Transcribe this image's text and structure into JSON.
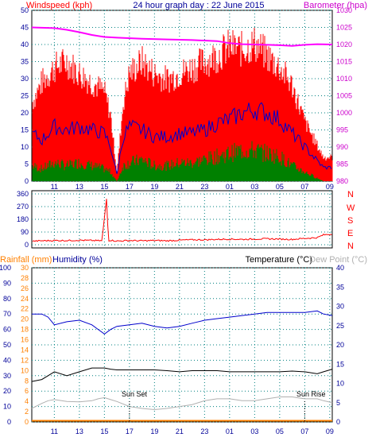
{
  "title": "24 hour graph day : 22 June 2015",
  "colors": {
    "windspeed": "#ff0000",
    "windgust": "#ff0000",
    "windavg": "#0000cc",
    "windlow": "#008000",
    "barometer": "#ff00ff",
    "direction": "#ff0000",
    "rain": "#ff8000",
    "humidity": "#0000cc",
    "temperature": "#000000",
    "dewpoint": "#b0b0b0",
    "axis_blue": "#000099",
    "barometer_axis": "#cc00cc",
    "rain_axis": "#ff8000",
    "direction_axis": "#ff0000",
    "grid": "#008080"
  },
  "x_tick_labels": [
    "11",
    "13",
    "15",
    "17",
    "19",
    "21",
    "23",
    "01",
    "03",
    "05",
    "07",
    "09"
  ],
  "chart_data": [
    {
      "type": "line",
      "name": "wind-barometer",
      "left_axis_label": "Windspeed (kph)",
      "right_axis_label": "Barometer (hpa)",
      "left_ticks": [
        "0",
        "5",
        "10",
        "15",
        "20",
        "25",
        "30",
        "35",
        "40",
        "45",
        "50"
      ],
      "right_ticks": [
        "980",
        "985",
        "990",
        "995",
        "1000",
        "1005",
        "1010",
        "1015",
        "1020",
        "1025",
        "1030"
      ],
      "ylim": [
        0,
        50
      ],
      "y2lim": [
        980,
        1030
      ],
      "x_hours": [
        9.2,
        10,
        11,
        12,
        13,
        14,
        15,
        15.5,
        16,
        16.5,
        17,
        18,
        19,
        20,
        21,
        22,
        23,
        0,
        1,
        2,
        3,
        4,
        5,
        6,
        7,
        8,
        8.5,
        9.2
      ],
      "gust": [
        26,
        33,
        38,
        40,
        36,
        33,
        30,
        22,
        3,
        26,
        36,
        40,
        36,
        34,
        36,
        38,
        40,
        42,
        45,
        44,
        46,
        42,
        38,
        32,
        20,
        12,
        8,
        8
      ],
      "avg": [
        14,
        12,
        16,
        15,
        16,
        15,
        14,
        10,
        2,
        13,
        16,
        15,
        13,
        13,
        14,
        14,
        15,
        17,
        18,
        20,
        21,
        20,
        18,
        14,
        10,
        6,
        4,
        4
      ],
      "low": [
        5,
        4,
        6,
        5,
        6,
        5,
        4,
        3,
        0,
        5,
        6,
        7,
        5,
        5,
        6,
        6,
        7,
        8,
        9,
        10,
        10,
        9,
        8,
        5,
        3,
        1,
        0,
        0
      ],
      "barometer_x": [
        9.2,
        11,
        12,
        13,
        14,
        15,
        16,
        18,
        20,
        22,
        24,
        25,
        26,
        27,
        28,
        29,
        30,
        31,
        31.5,
        32,
        33.2
      ],
      "barometer": [
        1025,
        1024.8,
        1024.3,
        1023.6,
        1022.8,
        1022.2,
        1022.0,
        1021.7,
        1021.5,
        1021.3,
        1021.0,
        1020.4,
        1020.1,
        1020.0,
        1019.9,
        1019.8,
        1019.6,
        1019.9,
        1020.0,
        1020.1,
        1020.0
      ]
    },
    {
      "type": "line",
      "name": "wind-direction",
      "right_labels": [
        "N",
        "W",
        "S",
        "E",
        "N"
      ],
      "left_ticks": [
        "0",
        "90",
        "180",
        "270",
        "360"
      ],
      "ylim": [
        0,
        360
      ],
      "x_hours": [
        9.2,
        10,
        11,
        12,
        13,
        14,
        14.8,
        15.2,
        15.3,
        15.5,
        16,
        17,
        18,
        19,
        20,
        21,
        22,
        23,
        0,
        1,
        2,
        3,
        4,
        5,
        6,
        7,
        8,
        8.5,
        9.2
      ],
      "values": [
        25,
        28,
        30,
        30,
        32,
        30,
        28,
        350,
        28,
        32,
        26,
        30,
        28,
        30,
        28,
        32,
        35,
        35,
        38,
        40,
        38,
        40,
        42,
        40,
        38,
        45,
        50,
        70,
        75
      ]
    },
    {
      "type": "line",
      "name": "rain-humidity-temperature",
      "rain_label": "Rainfall (mm)",
      "humidity_label": "Humidity (%)",
      "temperature_label": "Temperature (°C)",
      "dewpoint_label": "Dew Point (°C)",
      "humidity_ticks": [
        "0",
        "10",
        "20",
        "30",
        "40",
        "50",
        "60",
        "70",
        "80",
        "90",
        "100"
      ],
      "rain_ticks": [
        "0",
        "2",
        "4",
        "6",
        "8",
        "10",
        "12",
        "14",
        "16",
        "18",
        "20",
        "22",
        "24",
        "26",
        "28",
        "30"
      ],
      "temp_ticks": [
        "0",
        "5",
        "10",
        "15",
        "20",
        "25",
        "30",
        "35",
        "40"
      ],
      "humidity_lim": [
        0,
        100
      ],
      "temp_lim": [
        0,
        40
      ],
      "sunset_label": "Sun Set",
      "sunrise_label": "Sun Rise",
      "x_hours": [
        9.2,
        10,
        10.5,
        11,
        12,
        13,
        14,
        14.5,
        15,
        15.5,
        16,
        17,
        18,
        19,
        20,
        21,
        22,
        23,
        0,
        1,
        2,
        3,
        4,
        5,
        6,
        7,
        8,
        8.5,
        9.2
      ],
      "humidity": [
        70,
        70,
        68,
        63,
        65,
        66,
        63,
        60,
        57,
        60,
        62,
        63,
        64,
        62,
        61,
        62,
        64,
        66,
        67,
        68,
        69,
        70,
        71,
        71,
        71,
        71,
        72,
        70,
        69
      ],
      "temperature": [
        10.5,
        11,
        12,
        13,
        12,
        13,
        14,
        14,
        14,
        13.7,
        13.5,
        13.5,
        13.5,
        13.5,
        13.3,
        13,
        13.3,
        13.3,
        13.3,
        13,
        13,
        13,
        13,
        13,
        13.2,
        13,
        12.5,
        13,
        13.7
      ],
      "dewpoint": [
        3.5,
        4.8,
        5.5,
        5.8,
        5.3,
        5.2,
        5.5,
        6.0,
        6.3,
        5.8,
        5.3,
        4.0,
        3.5,
        3.2,
        3.5,
        4.0,
        4.5,
        5.5,
        6.0,
        6.0,
        5.5,
        5.5,
        6.0,
        6.5,
        6.5,
        6.0,
        6.0,
        5.5,
        5.0
      ],
      "rain": [
        0.3,
        0.3,
        0.3,
        0.3,
        0.3,
        0.3,
        0.3,
        0.3,
        0.3,
        0.3,
        0.3,
        0.3,
        0.3,
        0.3,
        0.3,
        0.3,
        0.3,
        0.3,
        0.3,
        0.3,
        0.3,
        0.3,
        0.3,
        0.3,
        0.3,
        0.3,
        0.3,
        0.3,
        0.3
      ]
    }
  ]
}
